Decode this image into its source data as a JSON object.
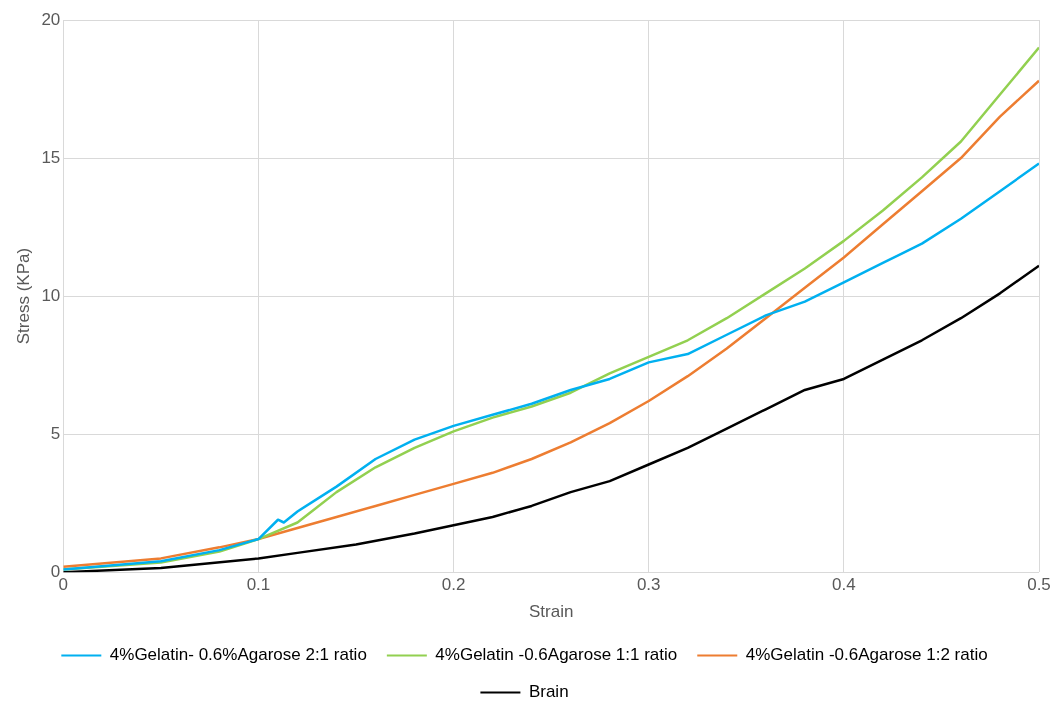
{
  "chart_data": {
    "type": "line",
    "xlabel": "Strain",
    "ylabel": "Stress (KPa)",
    "xlim": [
      0,
      0.5
    ],
    "xticks": [
      0,
      0.1,
      0.2,
      0.3,
      0.4,
      0.5
    ],
    "ylim": [
      0,
      20
    ],
    "yticks": [
      0,
      5,
      10,
      15,
      20
    ],
    "grid": true,
    "legend": "bottom",
    "marker": "none",
    "line_style": "solid",
    "series": [
      {
        "name": "4%Gelatin- 0.6%Agarose 2:1 ratio",
        "color": "#00b0f0",
        "x": [
          0,
          0.05,
          0.08,
          0.1,
          0.11,
          0.113,
          0.12,
          0.14,
          0.16,
          0.18,
          0.2,
          0.22,
          0.24,
          0.26,
          0.28,
          0.3,
          0.32,
          0.34,
          0.36,
          0.38,
          0.4,
          0.42,
          0.44,
          0.46,
          0.48,
          0.5
        ],
        "values": [
          0.1,
          0.4,
          0.8,
          1.2,
          1.9,
          1.8,
          2.2,
          3.1,
          4.1,
          4.8,
          5.3,
          5.7,
          6.1,
          6.6,
          7.0,
          7.6,
          7.9,
          8.6,
          9.3,
          9.8,
          10.5,
          11.2,
          11.9,
          12.8,
          13.8,
          14.8
        ]
      },
      {
        "name": "4%Gelatin -0.6Agarose 1:1 ratio",
        "color": "#92d050",
        "x": [
          0,
          0.05,
          0.08,
          0.1,
          0.12,
          0.14,
          0.16,
          0.18,
          0.2,
          0.22,
          0.24,
          0.26,
          0.28,
          0.3,
          0.32,
          0.34,
          0.36,
          0.38,
          0.4,
          0.42,
          0.44,
          0.46,
          0.48,
          0.5
        ],
        "values": [
          0.1,
          0.35,
          0.75,
          1.2,
          1.8,
          2.9,
          3.8,
          4.5,
          5.1,
          5.6,
          6.0,
          6.5,
          7.2,
          7.8,
          8.4,
          9.2,
          10.1,
          11.0,
          12.0,
          13.1,
          14.3,
          15.6,
          17.3,
          19.0
        ]
      },
      {
        "name": "4%Gelatin -0.6Agarose 1:2 ratio",
        "color": "#ed7d31",
        "x": [
          0,
          0.05,
          0.08,
          0.1,
          0.12,
          0.14,
          0.16,
          0.18,
          0.2,
          0.22,
          0.24,
          0.26,
          0.28,
          0.3,
          0.32,
          0.34,
          0.36,
          0.38,
          0.4,
          0.42,
          0.44,
          0.46,
          0.48,
          0.5
        ],
        "values": [
          0.2,
          0.5,
          0.9,
          1.2,
          1.6,
          2.0,
          2.4,
          2.8,
          3.2,
          3.6,
          4.1,
          4.7,
          5.4,
          6.2,
          7.1,
          8.1,
          9.2,
          10.3,
          11.4,
          12.6,
          13.8,
          15.0,
          16.5,
          17.8
        ]
      },
      {
        "name": "Brain",
        "color": "#000000",
        "x": [
          0,
          0.05,
          0.1,
          0.12,
          0.15,
          0.18,
          0.2,
          0.22,
          0.24,
          0.26,
          0.28,
          0.3,
          0.32,
          0.34,
          0.36,
          0.38,
          0.4,
          0.42,
          0.44,
          0.46,
          0.48,
          0.5
        ],
        "values": [
          0,
          0.15,
          0.5,
          0.7,
          1.0,
          1.4,
          1.7,
          2.0,
          2.4,
          2.9,
          3.3,
          3.9,
          4.5,
          5.2,
          5.9,
          6.6,
          7.0,
          7.7,
          8.4,
          9.2,
          10.1,
          11.1
        ]
      }
    ]
  }
}
